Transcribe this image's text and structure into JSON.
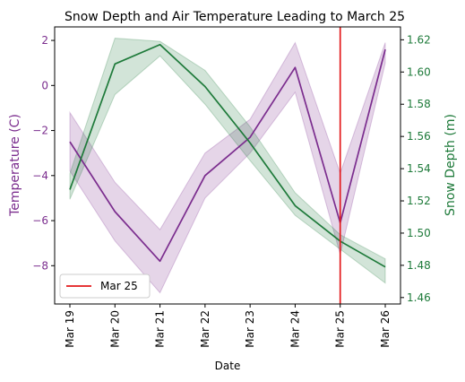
{
  "chart_data": {
    "type": "line",
    "title": "Snow Depth and Air Temperature Leading to March 25",
    "xlabel": "Date",
    "categories": [
      "Mar 19",
      "Mar 20",
      "Mar 21",
      "Mar 22",
      "Mar 23",
      "Mar 24",
      "Mar 25",
      "Mar 26"
    ],
    "left_axis": {
      "label": "Temperature (C)",
      "color": "#7B2D8E",
      "ylim": [
        -9.7,
        2.6
      ],
      "ticks": [
        2,
        0,
        -2,
        -4,
        -6,
        -8
      ],
      "tick_labels": [
        "2",
        "0",
        "−2",
        "−4",
        "−6",
        "−8"
      ]
    },
    "right_axis": {
      "label": "Snow Depth (m)",
      "color": "#1E7A3A",
      "ylim": [
        1.456,
        1.628
      ],
      "ticks": [
        1.62,
        1.6,
        1.58,
        1.56,
        1.54,
        1.52,
        1.5,
        1.48,
        1.46
      ],
      "tick_labels": [
        "1.62",
        "1.60",
        "1.58",
        "1.56",
        "1.54",
        "1.52",
        "1.50",
        "1.48",
        "1.46"
      ]
    },
    "series": [
      {
        "axis": "left",
        "color": "#7B2D8E",
        "values": [
          -2.5,
          -5.6,
          -7.8,
          -4.0,
          -2.3,
          0.8,
          -6.1,
          1.6
        ],
        "band_lower": [
          -3.8,
          -6.9,
          -9.2,
          -5.0,
          -3.0,
          -0.3,
          -7.5,
          1.0
        ],
        "band_upper": [
          -1.2,
          -4.3,
          -6.4,
          -3.0,
          -1.5,
          1.9,
          -3.9,
          1.9
        ]
      },
      {
        "axis": "right",
        "color": "#1E7A3A",
        "values": [
          1.527,
          1.605,
          1.617,
          1.591,
          1.556,
          1.517,
          1.495,
          1.479
        ],
        "band_lower": [
          1.521,
          1.586,
          1.61,
          1.58,
          1.545,
          1.511,
          1.49,
          1.469
        ],
        "band_upper": [
          1.537,
          1.621,
          1.619,
          1.601,
          1.566,
          1.525,
          1.499,
          1.484
        ]
      }
    ],
    "reference_line": {
      "category": "Mar 25",
      "color": "#E31A1C",
      "label": "Mar 25"
    },
    "legend": {
      "position": "lower-left",
      "entries": [
        "Mar 25"
      ]
    },
    "grid": false
  }
}
